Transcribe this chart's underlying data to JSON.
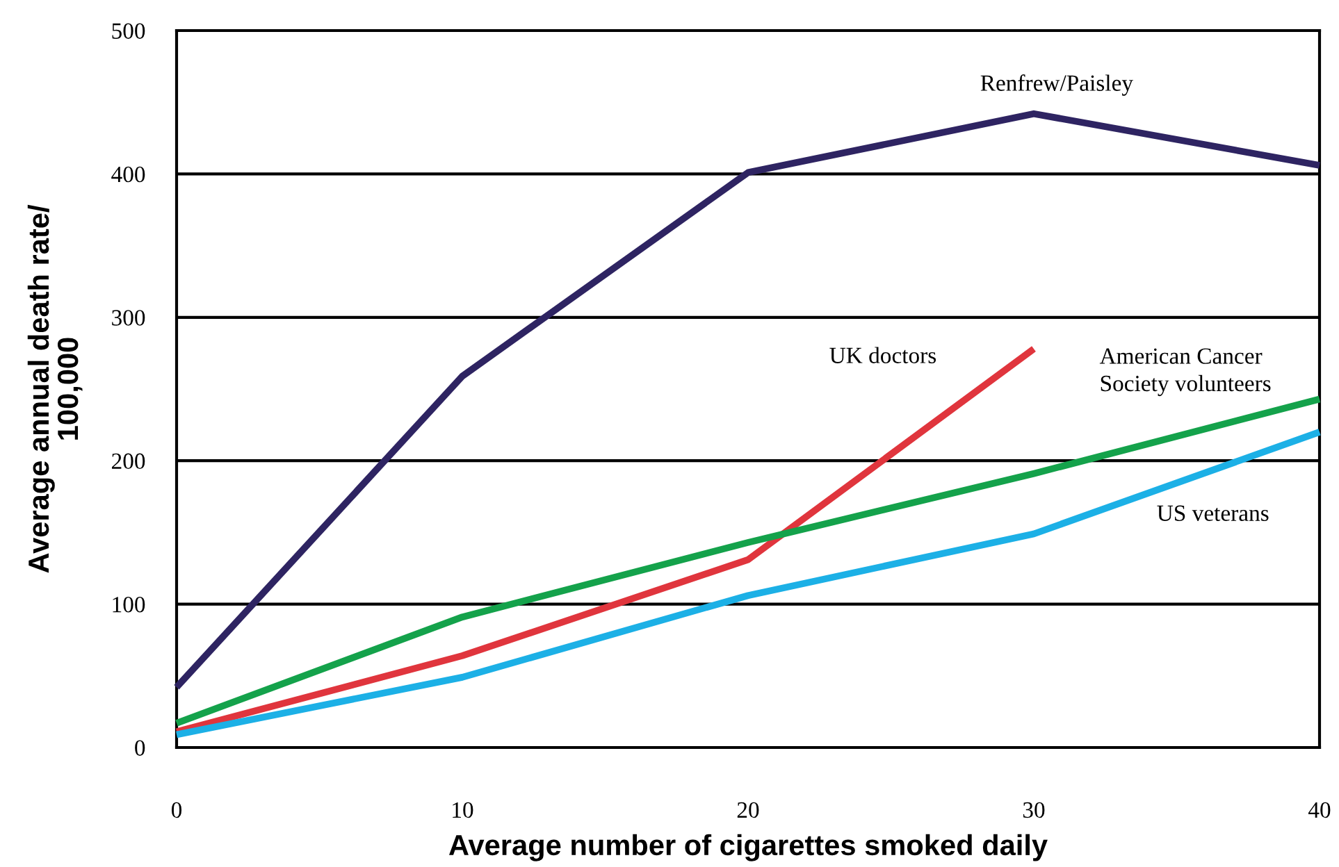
{
  "chart_data": {
    "type": "line",
    "xlabel": "Average number of cigarettes smoked daily",
    "ylabel": "Average annual death rate/\n100,000",
    "x": [
      0,
      10,
      20,
      30,
      40
    ],
    "series": [
      {
        "name": "Renfrew/Paisley",
        "color": "#2e2462",
        "values": [
          42,
          259,
          401,
          442,
          406
        ]
      },
      {
        "name": "UK doctors",
        "color": "#e0353d",
        "values": [
          11,
          64,
          131,
          278,
          null
        ]
      },
      {
        "name": "American Cancer\nSociety volunteers",
        "color": "#14a24b",
        "values": [
          17,
          91,
          143,
          191,
          243
        ]
      },
      {
        "name": "US veterans",
        "color": "#1cb0e6",
        "values": [
          9,
          49,
          106,
          149,
          220
        ]
      }
    ],
    "xlim": [
      0,
      40
    ],
    "xticks": [
      0,
      10,
      20,
      30,
      40
    ],
    "ylim": [
      0,
      500
    ],
    "yticks": [
      0,
      100,
      200,
      300,
      400,
      500
    ],
    "grid": "y",
    "marker": "none",
    "line_style": "solid"
  }
}
